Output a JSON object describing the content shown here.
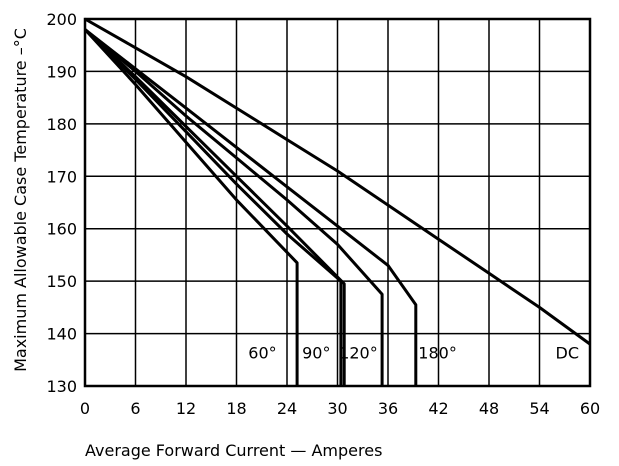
{
  "chart_data": {
    "type": "line",
    "xlabel": "Average Forward Current  —  Amperes",
    "ylabel": "Maximum Allowable Case Temperature –°C",
    "xlim": [
      0,
      60
    ],
    "ylim": [
      130,
      200
    ],
    "x_ticks": [
      "0",
      "6",
      "12",
      "18",
      "24",
      "30",
      "36",
      "42",
      "48",
      "54",
      "60"
    ],
    "y_ticks": [
      "130",
      "140",
      "150",
      "160",
      "170",
      "180",
      "190",
      "200"
    ],
    "grid": true,
    "colors": {
      "line": "#000000",
      "grid": "#000000",
      "background": "#ffffff"
    },
    "series": [
      {
        "name": "60°",
        "x": [
          0,
          6,
          12,
          18,
          25.2,
          25.2
        ],
        "y": [
          198,
          187.5,
          176.5,
          165.5,
          153.5,
          130
        ]
      },
      {
        "name": "90°",
        "x": [
          0,
          6,
          12,
          18,
          24,
          30.4,
          30.4
        ],
        "y": [
          198,
          188.5,
          178.5,
          168.5,
          159,
          150,
          130
        ]
      },
      {
        "name": "120°",
        "x": [
          0,
          6,
          12,
          18,
          24,
          30.8,
          30.8
        ],
        "y": [
          198,
          189,
          179.5,
          170,
          160.5,
          149.5,
          130
        ]
      },
      {
        "name": "180°",
        "x": [
          0,
          6,
          12,
          18,
          24,
          30,
          35.3,
          35.3
        ],
        "y": [
          198,
          190,
          181.5,
          173.5,
          165.5,
          157,
          147.5,
          130
        ]
      },
      {
        "name": "180°",
        "x": [
          0,
          6,
          12,
          18,
          24,
          30,
          36,
          39.3,
          39.3
        ],
        "y": [
          198,
          190.5,
          183,
          175.5,
          168,
          160.5,
          153,
          145.5,
          130
        ]
      },
      {
        "name": "DC",
        "x": [
          0,
          6,
          12,
          18,
          24,
          30,
          36,
          42,
          48,
          54,
          60
        ],
        "y": [
          200,
          194.5,
          189,
          183,
          177,
          171,
          164.5,
          158,
          151.5,
          145,
          138
        ]
      }
    ],
    "curve_labels": [
      {
        "text": "60°",
        "x": 19.4,
        "y": 135.2
      },
      {
        "text": "90°",
        "x": 25.8,
        "y": 135.2
      },
      {
        "text": "120°",
        "x": 30.2,
        "y": 135.2
      },
      {
        "text": "180°",
        "x": 39.6,
        "y": 135.2
      },
      {
        "text": "DC",
        "x": 55.9,
        "y": 135.2
      }
    ]
  }
}
